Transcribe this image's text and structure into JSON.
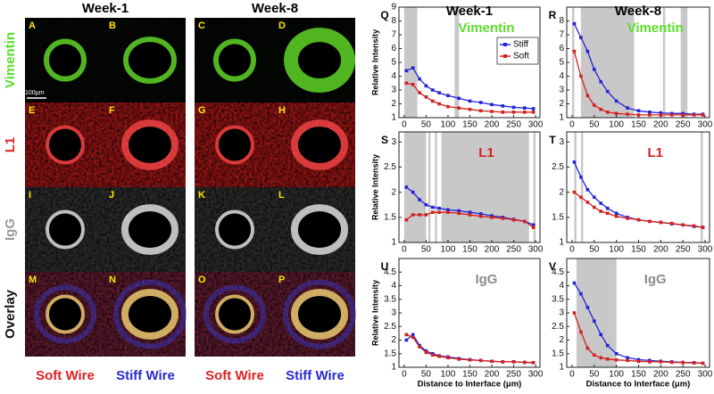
{
  "figure": {
    "columns": [
      "Week-1",
      "Week-8"
    ],
    "rows": [
      {
        "label": "Vimentin",
        "color": "#5adf2a"
      },
      {
        "label": "L1",
        "color": "#e02020"
      },
      {
        "label": "IgG",
        "color": "#9a9a9a"
      },
      {
        "label": "Overlay",
        "color": "#111111"
      }
    ],
    "panels": [
      "A",
      "B",
      "C",
      "D",
      "E",
      "F",
      "G",
      "H",
      "I",
      "J",
      "K",
      "L",
      "M",
      "N",
      "O",
      "P"
    ],
    "scale_bar": "100μm",
    "bottom": [
      {
        "label": "Soft Wire",
        "color": "#e02020"
      },
      {
        "label": "Stiff Wire",
        "color": "#2a2ad0"
      },
      {
        "label": "Soft Wire",
        "color": "#e02020"
      },
      {
        "label": "Stiff Wire",
        "color": "#2a2ad0"
      }
    ]
  },
  "chart_data": [
    {
      "type": "line",
      "letter": "Q",
      "title": "Week-1",
      "label": "Vimentin",
      "label_color": "#5adf2a",
      "ylabel": "Relative Intensity",
      "legend": "upper right",
      "x": [
        5,
        20,
        35,
        50,
        65,
        80,
        100,
        125,
        150,
        175,
        200,
        225,
        250,
        275,
        295
      ],
      "xlim": [
        -12,
        310
      ],
      "xticks": [
        0,
        50,
        100,
        150,
        200,
        250,
        300
      ],
      "ylim": [
        1,
        9
      ],
      "yticks": [
        1,
        2,
        3,
        4,
        5,
        6,
        7,
        8,
        9
      ],
      "shaded": [
        [
          0,
          30
        ],
        [
          115,
          125
        ]
      ],
      "series": [
        {
          "name": "Stiff",
          "color": "#2323d8",
          "values": [
            4.4,
            4.6,
            3.8,
            3.3,
            3.0,
            2.8,
            2.6,
            2.4,
            2.2,
            2.1,
            1.95,
            1.85,
            1.75,
            1.7,
            1.65
          ]
        },
        {
          "name": "Soft",
          "color": "#d42020",
          "values": [
            3.5,
            3.4,
            2.8,
            2.5,
            2.2,
            2.0,
            1.8,
            1.7,
            1.6,
            1.5,
            1.45,
            1.4,
            1.4,
            1.4,
            1.4
          ]
        }
      ]
    },
    {
      "type": "line",
      "letter": "R",
      "title": "Week-8",
      "label": "Vimentin",
      "label_color": "#5adf2a",
      "x": [
        5,
        20,
        35,
        50,
        65,
        80,
        100,
        125,
        150,
        175,
        200,
        225,
        250,
        275,
        295
      ],
      "xlim": [
        -12,
        310
      ],
      "xticks": [
        0,
        50,
        100,
        150,
        200,
        250,
        300
      ],
      "ylim": [
        1,
        9
      ],
      "yticks": [
        1,
        2,
        3,
        4,
        5,
        6,
        7,
        8
      ],
      "shaded": [
        [
          0,
          5
        ],
        [
          20,
          140
        ],
        [
          205,
          210
        ],
        [
          245,
          260
        ]
      ],
      "series": [
        {
          "name": "Stiff",
          "color": "#2323d8",
          "values": [
            7.8,
            6.8,
            5.8,
            4.5,
            3.6,
            2.9,
            2.2,
            1.7,
            1.5,
            1.4,
            1.35,
            1.3,
            1.3,
            1.25,
            1.25
          ]
        },
        {
          "name": "Soft",
          "color": "#d42020",
          "values": [
            5.8,
            4.0,
            2.6,
            1.9,
            1.6,
            1.4,
            1.3,
            1.25,
            1.2,
            1.2,
            1.2,
            1.2,
            1.2,
            1.2,
            1.2
          ]
        }
      ]
    },
    {
      "type": "line",
      "letter": "S",
      "label": "L1",
      "label_color": "#d42020",
      "ylabel": "Relative Intensity",
      "x": [
        5,
        20,
        35,
        50,
        65,
        80,
        100,
        125,
        150,
        175,
        200,
        225,
        250,
        275,
        295
      ],
      "xlim": [
        -12,
        310
      ],
      "xticks": [
        0,
        50,
        100,
        150,
        200,
        250,
        300
      ],
      "ylim": [
        1,
        3.2
      ],
      "yticks": [
        1,
        1.5,
        2,
        2.5,
        3
      ],
      "shaded": [
        [
          0,
          50
        ],
        [
          55,
          60
        ],
        [
          70,
          75
        ],
        [
          85,
          285
        ],
        [
          295,
          300
        ]
      ],
      "series": [
        {
          "name": "Stiff",
          "color": "#2323d8",
          "values": [
            2.1,
            2.0,
            1.85,
            1.75,
            1.7,
            1.68,
            1.65,
            1.63,
            1.6,
            1.57,
            1.53,
            1.5,
            1.46,
            1.42,
            1.35
          ]
        },
        {
          "name": "Soft",
          "color": "#d42020",
          "values": [
            1.45,
            1.55,
            1.55,
            1.55,
            1.6,
            1.6,
            1.6,
            1.58,
            1.55,
            1.52,
            1.5,
            1.48,
            1.45,
            1.42,
            1.3
          ]
        }
      ]
    },
    {
      "type": "line",
      "letter": "T",
      "label": "L1",
      "label_color": "#d42020",
      "x": [
        5,
        20,
        35,
        50,
        65,
        80,
        100,
        125,
        150,
        175,
        200,
        225,
        250,
        275,
        295
      ],
      "xlim": [
        -12,
        310
      ],
      "xticks": [
        0,
        50,
        100,
        150,
        200,
        250,
        300
      ],
      "ylim": [
        1,
        3.2
      ],
      "yticks": [
        1,
        1.5,
        2,
        2.5,
        3
      ],
      "shaded": [
        [
          5,
          10
        ],
        [
          20,
          25
        ],
        [
          290,
          295
        ]
      ],
      "series": [
        {
          "name": "Stiff",
          "color": "#2323d8",
          "values": [
            2.6,
            2.3,
            2.05,
            1.9,
            1.78,
            1.68,
            1.58,
            1.5,
            1.45,
            1.42,
            1.4,
            1.37,
            1.35,
            1.32,
            1.3
          ]
        },
        {
          "name": "Soft",
          "color": "#d42020",
          "values": [
            2.0,
            1.9,
            1.8,
            1.7,
            1.62,
            1.58,
            1.52,
            1.48,
            1.45,
            1.42,
            1.4,
            1.38,
            1.35,
            1.33,
            1.3
          ]
        }
      ]
    },
    {
      "type": "line",
      "letter": "U",
      "label": "IgG",
      "label_color": "#8c8c8c",
      "ylabel": "Relative Intensity",
      "xlabel": "Distance to Interface (μm)",
      "x": [
        5,
        20,
        35,
        50,
        65,
        80,
        100,
        125,
        150,
        175,
        200,
        225,
        250,
        275,
        295
      ],
      "xlim": [
        -12,
        310
      ],
      "xticks": [
        0,
        50,
        100,
        150,
        200,
        250,
        300
      ],
      "ylim": [
        1,
        5
      ],
      "yticks": [
        1,
        1.5,
        2,
        2.5,
        3,
        3.5,
        4,
        4.5
      ],
      "shaded": [],
      "series": [
        {
          "name": "Stiff",
          "color": "#2323d8",
          "values": [
            2.0,
            2.2,
            1.8,
            1.6,
            1.5,
            1.42,
            1.38,
            1.32,
            1.28,
            1.25,
            1.22,
            1.2,
            1.2,
            1.18,
            1.17
          ]
        },
        {
          "name": "Soft",
          "color": "#d42020",
          "values": [
            2.2,
            2.1,
            1.75,
            1.55,
            1.45,
            1.4,
            1.35,
            1.3,
            1.27,
            1.25,
            1.22,
            1.2,
            1.2,
            1.18,
            1.17
          ]
        }
      ]
    },
    {
      "type": "line",
      "letter": "V",
      "label": "IgG",
      "label_color": "#8c8c8c",
      "xlabel": "Distance to Interface (μm)",
      "x": [
        5,
        20,
        35,
        50,
        65,
        80,
        100,
        125,
        150,
        175,
        200,
        225,
        250,
        275,
        295
      ],
      "xlim": [
        -12,
        310
      ],
      "xticks": [
        0,
        50,
        100,
        150,
        200,
        250,
        300
      ],
      "ylim": [
        1,
        5
      ],
      "yticks": [
        1,
        1.5,
        2,
        2.5,
        3,
        3.5,
        4,
        4.5
      ],
      "shaded": [
        [
          10,
          100
        ]
      ],
      "series": [
        {
          "name": "Stiff",
          "color": "#2323d8",
          "values": [
            4.1,
            3.7,
            3.2,
            2.7,
            2.2,
            1.8,
            1.5,
            1.35,
            1.28,
            1.25,
            1.22,
            1.2,
            1.18,
            1.17,
            1.15
          ]
        },
        {
          "name": "Soft",
          "color": "#d42020",
          "values": [
            3.0,
            2.3,
            1.7,
            1.45,
            1.35,
            1.3,
            1.27,
            1.25,
            1.22,
            1.2,
            1.2,
            1.18,
            1.17,
            1.16,
            1.15
          ]
        }
      ]
    }
  ]
}
